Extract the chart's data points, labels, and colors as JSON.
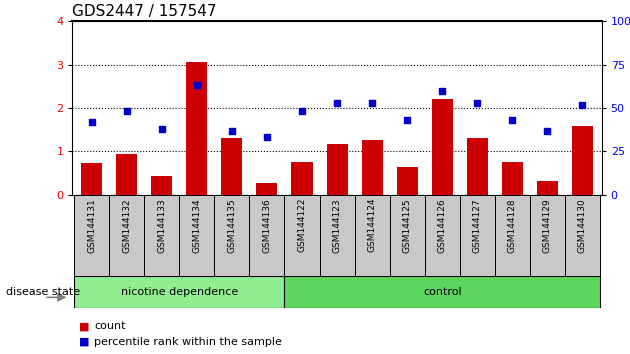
{
  "title": "GDS2447 / 157547",
  "samples": [
    "GSM144131",
    "GSM144132",
    "GSM144133",
    "GSM144134",
    "GSM144135",
    "GSM144136",
    "GSM144122",
    "GSM144123",
    "GSM144124",
    "GSM144125",
    "GSM144126",
    "GSM144127",
    "GSM144128",
    "GSM144129",
    "GSM144130"
  ],
  "counts": [
    0.72,
    0.95,
    0.42,
    3.05,
    1.3,
    0.28,
    0.75,
    1.18,
    1.25,
    0.65,
    2.2,
    1.3,
    0.75,
    0.32,
    1.58
  ],
  "percentiles": [
    42,
    48,
    38,
    63,
    37,
    33,
    48,
    53,
    53,
    43,
    60,
    53,
    43,
    37,
    52
  ],
  "bar_color": "#cc0000",
  "dot_color": "#0000cc",
  "ylim_left": [
    0,
    4
  ],
  "ylim_right": [
    0,
    100
  ],
  "yticks_left": [
    0,
    1,
    2,
    3,
    4
  ],
  "yticks_right": [
    0,
    25,
    50,
    75,
    100
  ],
  "group1_label": "nicotine dependence",
  "group2_label": "control",
  "group1_count": 6,
  "group2_count": 9,
  "disease_state_label": "disease state",
  "legend_count_label": "count",
  "legend_pct_label": "percentile rank within the sample",
  "background_color": "#ffffff",
  "tick_area_color": "#c8c8c8",
  "group1_bg": "#90ee90",
  "group2_bg": "#5cd65c",
  "title_fontsize": 11,
  "axis_fontsize": 8,
  "label_fontsize": 8
}
